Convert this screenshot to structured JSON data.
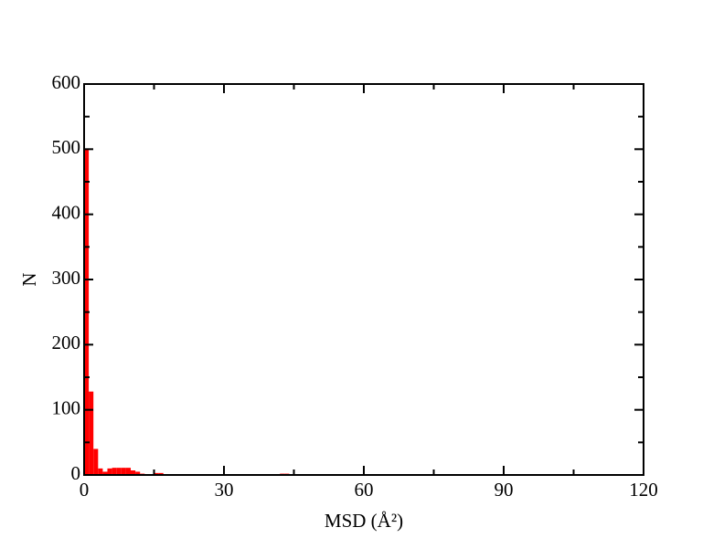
{
  "chart_data": {
    "type": "histogram",
    "xlabel": "MSD (Å²)",
    "ylabel": "N",
    "bins": [
      0,
      1,
      2,
      3,
      4,
      5,
      6,
      7,
      8,
      9,
      10,
      11,
      12,
      13,
      14,
      15,
      16,
      17,
      18,
      19,
      20,
      21,
      22,
      23,
      24,
      25,
      26,
      27,
      28,
      29,
      30,
      31,
      32,
      33,
      34,
      35,
      36,
      37,
      38,
      39,
      40,
      41,
      42,
      43,
      44,
      45
    ],
    "counts": [
      500,
      128,
      40,
      10,
      5,
      10,
      11,
      11,
      11,
      11,
      7,
      5,
      2,
      0,
      0,
      3,
      3,
      0,
      0,
      0,
      0,
      0,
      0,
      0,
      0,
      0,
      0,
      0,
      0,
      0,
      0,
      0,
      0,
      0,
      0,
      0,
      0,
      0,
      0,
      0,
      0,
      0,
      2,
      2,
      0
    ],
    "color": "#ff0000",
    "xlim": [
      0,
      120
    ],
    "xticks": [
      0,
      30,
      60,
      90,
      120
    ],
    "xminorticks": [
      15,
      45,
      75,
      105
    ],
    "ylim": [
      0,
      600
    ],
    "yticks": [
      0,
      100,
      200,
      300,
      400,
      500,
      600
    ],
    "yminorticks": [
      50,
      150,
      250,
      350,
      450,
      550
    ]
  }
}
